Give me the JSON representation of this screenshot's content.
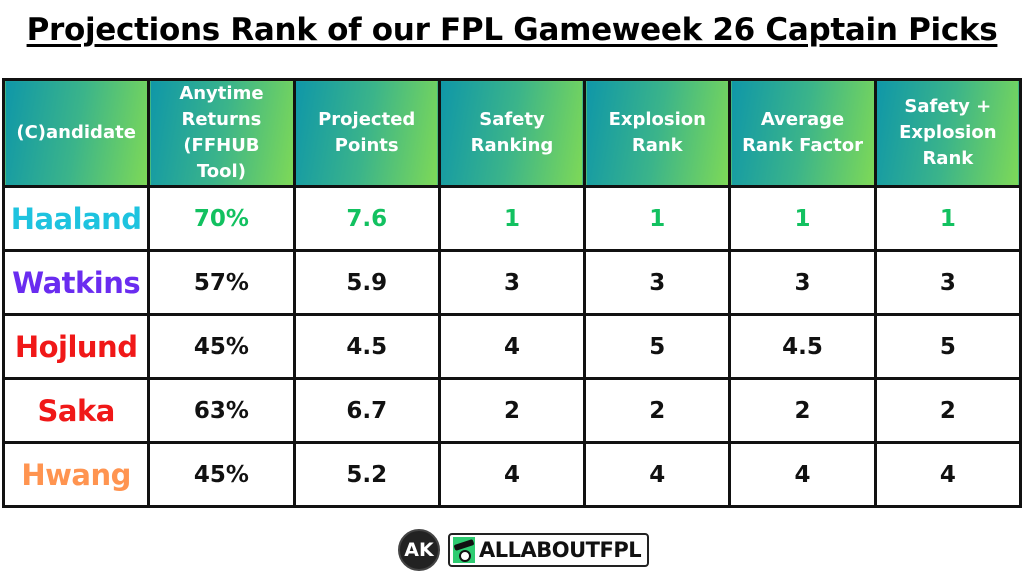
{
  "title": "Projections Rank of our FPL Gameweek 26 Captain Picks",
  "table": {
    "headers": [
      "(C)andidate",
      "Anytime Returns (FFHUB Tool)",
      "Projected Points",
      "Safety Ranking",
      "Explosion Rank",
      "Average Rank Factor",
      "Safety + Explosion Rank"
    ],
    "header_colors": {
      "gradient_start": "#0f97a8",
      "gradient_end": "#7ed957"
    },
    "rows": [
      {
        "name": "Haaland",
        "name_color": "#1ec3df",
        "value_color": "#12c160",
        "anytime_returns": "70%",
        "projected_points": "7.6",
        "safety_ranking": "1",
        "explosion_rank": "1",
        "average_rank_factor": "1",
        "safety_explosion_rank": "1"
      },
      {
        "name": "Watkins",
        "name_color": "#6a2cf0",
        "value_color": "#111111",
        "anytime_returns": "57%",
        "projected_points": "5.9",
        "safety_ranking": "3",
        "explosion_rank": "3",
        "average_rank_factor": "3",
        "safety_explosion_rank": "3"
      },
      {
        "name": "Hojlund",
        "name_color": "#f01818",
        "value_color": "#111111",
        "anytime_returns": "45%",
        "projected_points": "4.5",
        "safety_ranking": "4",
        "explosion_rank": "5",
        "average_rank_factor": "4.5",
        "safety_explosion_rank": "5"
      },
      {
        "name": "Saka",
        "name_color": "#f01818",
        "value_color": "#111111",
        "anytime_returns": "63%",
        "projected_points": "6.7",
        "safety_ranking": "2",
        "explosion_rank": "2",
        "average_rank_factor": "2",
        "safety_explosion_rank": "2"
      },
      {
        "name": "Hwang",
        "name_color": "#ff9450",
        "value_color": "#111111",
        "anytime_returns": "45%",
        "projected_points": "5.2",
        "safety_ranking": "4",
        "explosion_rank": "4",
        "average_rank_factor": "4",
        "safety_explosion_rank": "4"
      }
    ]
  },
  "footer": {
    "ak_logo_text": "AK",
    "brand_text": "ALLABOUTFPL",
    "brand_icon": "football-boot-icon"
  },
  "chart_data": {
    "type": "table",
    "title": "Projections Rank of our FPL Gameweek 26 Captain Picks",
    "columns": [
      "(C)andidate",
      "Anytime Returns (FFHUB Tool)",
      "Projected Points",
      "Safety Ranking",
      "Explosion Rank",
      "Average Rank Factor",
      "Safety + Explosion Rank"
    ],
    "rows": [
      [
        "Haaland",
        "70%",
        7.6,
        1,
        1,
        1,
        1
      ],
      [
        "Watkins",
        "57%",
        5.9,
        3,
        3,
        3,
        3
      ],
      [
        "Hojlund",
        "45%",
        4.5,
        4,
        5,
        4.5,
        5
      ],
      [
        "Saka",
        "63%",
        6.7,
        2,
        2,
        2,
        2
      ],
      [
        "Hwang",
        "45%",
        5.2,
        4,
        4,
        4,
        4
      ]
    ]
  }
}
